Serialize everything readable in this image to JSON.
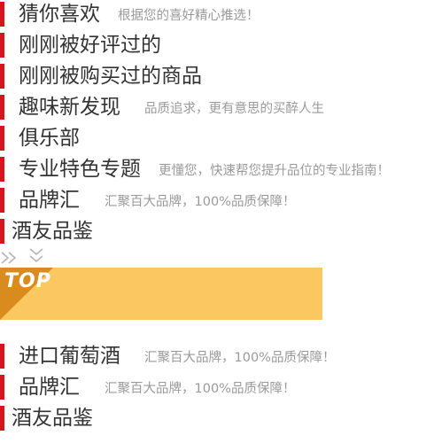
{
  "sections_top": [
    {
      "title": "猜你喜欢",
      "subtitle": "根据您的喜好精心推选！"
    },
    {
      "title": "刚刚被好评过的",
      "subtitle": ""
    },
    {
      "title": "刚刚被购买过的商品",
      "subtitle": ""
    },
    {
      "title": "趣味新发现",
      "subtitle": "品质追求，更有意思的买醉人生"
    },
    {
      "title": "俱乐部",
      "subtitle": ""
    },
    {
      "title": "专业特色专题",
      "subtitle": "更懂您，快速帮您提升品位的专业指南！"
    },
    {
      "title": "品牌汇",
      "subtitle": "汇聚百大品牌，100%品质保障！"
    },
    {
      "title": "酒友品鉴",
      "subtitle": ""
    }
  ],
  "top_banner": {
    "label": "TOP"
  },
  "sections_bottom": [
    {
      "title": "进口葡萄酒",
      "subtitle": "汇聚百大品牌，100%品质保障！"
    },
    {
      "title": "品牌汇",
      "subtitle": "汇聚百大品牌，100%品质保障！"
    },
    {
      "title": "酒友品鉴",
      "subtitle": ""
    }
  ],
  "icons": {
    "double_right": "double-chevron-right-icon",
    "double_down": "double-chevron-down-icon"
  },
  "colors": {
    "accent": "#d7141b",
    "banner": "#fac760",
    "banner_corner": "#d98b1d"
  }
}
